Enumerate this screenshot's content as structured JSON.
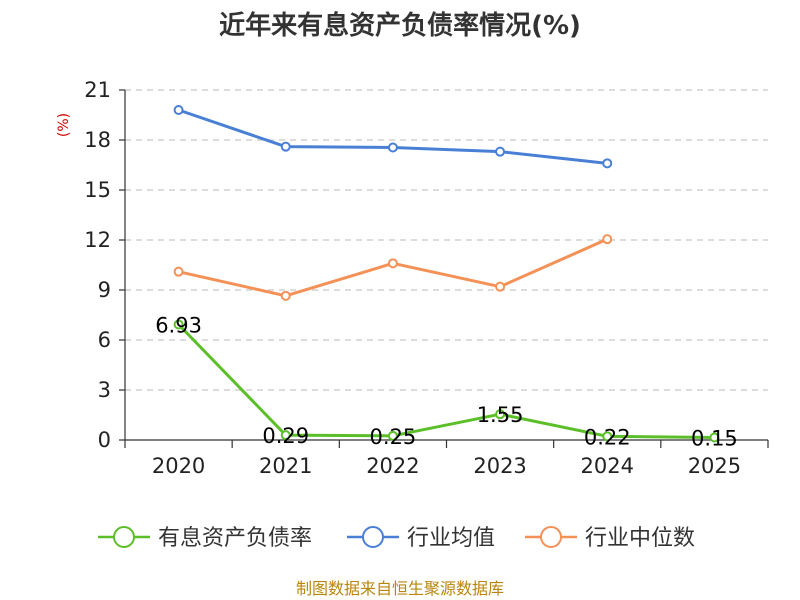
{
  "chart_data": {
    "type": "line",
    "title": "近年来有息资产负债率情况(%)",
    "unit_label": "(%)",
    "categories": [
      "2020",
      "2021",
      "2022",
      "2023",
      "2024",
      "2025"
    ],
    "ylim": [
      0,
      21
    ],
    "yticks": [
      0,
      3,
      6,
      9,
      12,
      15,
      18,
      21
    ],
    "grid": true,
    "legend_position": "bottom",
    "series": [
      {
        "name": "有息资产负债率",
        "color": "#5cbf2a",
        "values": [
          6.93,
          0.29,
          0.25,
          1.55,
          0.22,
          0.15
        ],
        "labels": [
          "6.93",
          "0.29",
          "0.25",
          "1.55",
          "0.22",
          "0.15"
        ]
      },
      {
        "name": "行业均值",
        "color": "#4a7fd6",
        "values": [
          19.8,
          17.6,
          17.55,
          17.3,
          16.6,
          null
        ]
      },
      {
        "name": "行业中位数",
        "color": "#f39157",
        "values": [
          10.1,
          8.65,
          10.6,
          9.2,
          12.05,
          null
        ]
      }
    ]
  },
  "footer": {
    "source": "制图数据来自恒生聚源数据库"
  }
}
